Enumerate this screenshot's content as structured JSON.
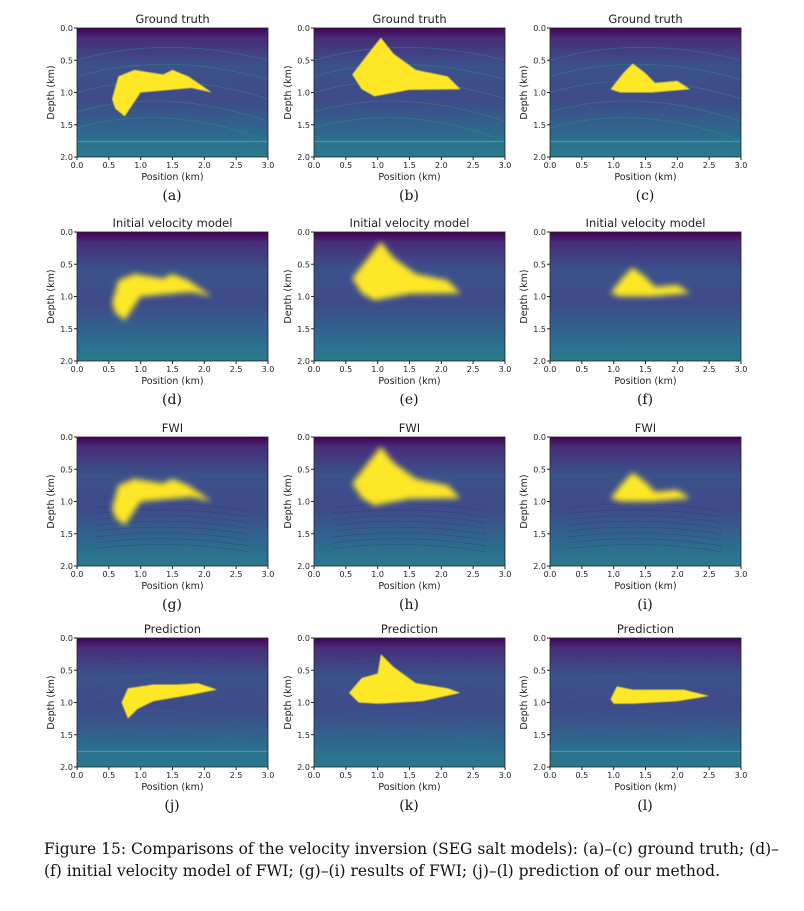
{
  "colormap": {
    "top": "#440154",
    "upper": "#3b528b",
    "mid": "#3f4a8a",
    "lower": "#2c6d8e",
    "salt": "#fde725",
    "layer": "#2a9d8f"
  },
  "axes": {
    "xlabel": "Position (km)",
    "ylabel": "Depth (km)",
    "xticks": [
      "0.0",
      "0.5",
      "1.0",
      "1.5",
      "2.0",
      "2.5",
      "3.0"
    ],
    "yticks": [
      "0.0",
      "0.5",
      "1.0",
      "1.5",
      "2.0"
    ]
  },
  "panels": [
    {
      "title": "Ground truth",
      "label": "(a)",
      "model": "a",
      "kind": "truth"
    },
    {
      "title": "Ground truth",
      "label": "(b)",
      "model": "b",
      "kind": "truth"
    },
    {
      "title": "Ground truth",
      "label": "(c)",
      "model": "c",
      "kind": "truth"
    },
    {
      "title": "Initial velocity model",
      "label": "(d)",
      "model": "a",
      "kind": "initial"
    },
    {
      "title": "Initial velocity model",
      "label": "(e)",
      "model": "b",
      "kind": "initial"
    },
    {
      "title": "Initial velocity model",
      "label": "(f)",
      "model": "c",
      "kind": "initial"
    },
    {
      "title": "FWI",
      "label": "(g)",
      "model": "a",
      "kind": "fwi"
    },
    {
      "title": "FWI",
      "label": "(h)",
      "model": "b",
      "kind": "fwi"
    },
    {
      "title": "FWI",
      "label": "(i)",
      "model": "c",
      "kind": "fwi"
    },
    {
      "title": "Prediction",
      "label": "(j)",
      "model": "a",
      "kind": "prediction"
    },
    {
      "title": "Prediction",
      "label": "(k)",
      "model": "b",
      "kind": "prediction"
    },
    {
      "title": "Prediction",
      "label": "(l)",
      "model": "c",
      "kind": "prediction"
    }
  ],
  "caption": "Figure 15: Comparisons of the velocity inversion (SEG salt models): (a)–(c) ground truth; (d)–(f) initial velocity model of FWI; (g)–(i) results of FWI; (j)–(l) prediction of our method."
}
